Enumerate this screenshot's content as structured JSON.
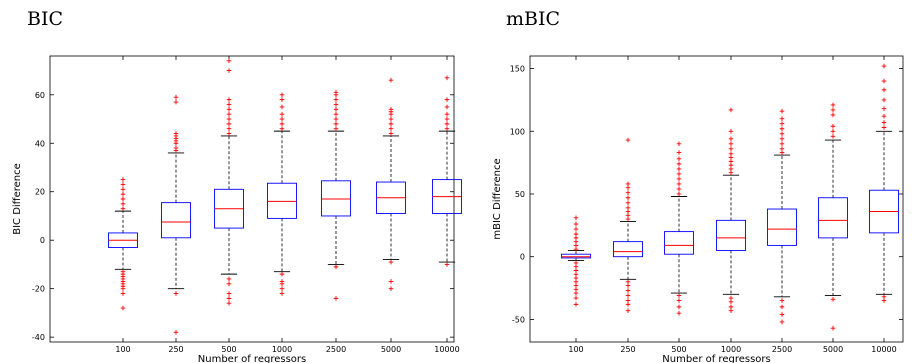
{
  "chart_data": [
    {
      "type": "box",
      "title": "BIC",
      "xlabel": "Number of regressors",
      "ylabel": "BIC Difference",
      "ylim": [
        -42,
        76
      ],
      "yticks": [
        -40,
        -20,
        0,
        20,
        40,
        60
      ],
      "categories": [
        "100",
        "250",
        "500",
        "1000",
        "2500",
        "5000",
        "10000"
      ],
      "box_color": "#0000ff",
      "median_color": "#ff0000",
      "outlier_color": "#ff0000",
      "boxes": [
        {
          "category": "100",
          "whisker_low": -12,
          "q1": -3,
          "median": 0,
          "q3": 3,
          "whisker_high": 12,
          "outliers": [
            -13,
            -14,
            -15,
            -16,
            -17,
            -18,
            -19,
            -20,
            -22,
            -28,
            13,
            15,
            17,
            19,
            21,
            23,
            25
          ]
        },
        {
          "category": "250",
          "whisker_low": -20,
          "q1": 1,
          "median": 7.5,
          "q3": 15.5,
          "whisker_high": 36,
          "outliers": [
            -22,
            -38,
            37,
            38,
            40,
            41,
            42,
            43,
            44,
            57,
            59
          ]
        },
        {
          "category": "500",
          "whisker_low": -14,
          "q1": 5,
          "median": 13,
          "q3": 21,
          "whisker_high": 43,
          "outliers": [
            -16,
            -18,
            -22,
            -24,
            -26,
            44,
            46,
            48,
            50,
            52,
            54,
            56,
            58,
            70,
            74
          ]
        },
        {
          "category": "1000",
          "whisker_low": -13,
          "q1": 9,
          "median": 16,
          "q3": 23.5,
          "whisker_high": 45,
          "outliers": [
            -14,
            -17,
            -18,
            -20,
            -22,
            46,
            48,
            50,
            52,
            55,
            58,
            60
          ]
        },
        {
          "category": "2500",
          "whisker_low": -10,
          "q1": 10,
          "median": 17,
          "q3": 24.5,
          "whisker_high": 45,
          "outliers": [
            -11,
            -24,
            46,
            48,
            50,
            52,
            54,
            56,
            58,
            60,
            61
          ]
        },
        {
          "category": "5000",
          "whisker_low": -8,
          "q1": 11,
          "median": 17.5,
          "q3": 24,
          "whisker_high": 43,
          "outliers": [
            -9,
            -17,
            -20,
            44,
            46,
            48,
            50,
            52,
            53,
            54,
            66
          ]
        },
        {
          "category": "10000",
          "whisker_low": -9,
          "q1": 11,
          "median": 18,
          "q3": 25,
          "whisker_high": 45,
          "outliers": [
            -10,
            46,
            48,
            50,
            52,
            55,
            58,
            67
          ]
        }
      ]
    },
    {
      "type": "box",
      "title": "mBIC",
      "xlabel": "Number of regressors",
      "ylabel": "mBIC Difference",
      "ylim": [
        -68,
        160
      ],
      "yticks": [
        -50,
        0,
        50,
        100,
        150
      ],
      "categories": [
        "100",
        "250",
        "500",
        "1000",
        "2500",
        "5000",
        "10000"
      ],
      "box_color": "#0000ff",
      "median_color": "#ff0000",
      "outlier_color": "#ff0000",
      "boxes": [
        {
          "category": "100",
          "whisker_low": -3,
          "q1": -1,
          "median": 0,
          "q3": 2,
          "whisker_high": 5,
          "outliers": [
            -5,
            -8,
            -11,
            -14,
            -17,
            -20,
            -23,
            -26,
            -29,
            -33,
            -38,
            6,
            9,
            12,
            15,
            18,
            22,
            26,
            31
          ]
        },
        {
          "category": "250",
          "whisker_low": -18,
          "q1": 0,
          "median": 4,
          "q3": 12,
          "whisker_high": 28,
          "outliers": [
            -20,
            -23,
            -27,
            -31,
            -35,
            -38,
            -43,
            30,
            33,
            36,
            39,
            43,
            47,
            51,
            55,
            58,
            93
          ]
        },
        {
          "category": "500",
          "whisker_low": -29,
          "q1": 2,
          "median": 9,
          "q3": 20,
          "whisker_high": 48,
          "outliers": [
            -31,
            -35,
            -40,
            -45,
            50,
            54,
            58,
            62,
            66,
            70,
            74,
            78,
            83,
            90
          ]
        },
        {
          "category": "1000",
          "whisker_low": -30,
          "q1": 5,
          "median": 15,
          "q3": 29,
          "whisker_high": 65,
          "outliers": [
            -33,
            -36,
            -40,
            -43,
            67,
            70,
            73,
            76,
            79,
            82,
            86,
            90,
            94,
            100,
            117
          ]
        },
        {
          "category": "2500",
          "whisker_low": -32,
          "q1": 9,
          "median": 22,
          "q3": 38,
          "whisker_high": 81,
          "outliers": [
            -35,
            -40,
            -46,
            -52,
            83,
            86,
            90,
            94,
            98,
            102,
            106,
            110,
            116
          ]
        },
        {
          "category": "5000",
          "whisker_low": -31,
          "q1": 15,
          "median": 29,
          "q3": 47,
          "whisker_high": 93,
          "outliers": [
            -34,
            -57,
            96,
            100,
            104,
            113,
            117,
            121
          ]
        },
        {
          "category": "10000",
          "whisker_low": -30,
          "q1": 19,
          "median": 36,
          "q3": 53,
          "whisker_high": 100,
          "outliers": [
            -32,
            -35,
            103,
            107,
            112,
            118,
            125,
            133,
            140,
            152
          ]
        }
      ]
    }
  ]
}
